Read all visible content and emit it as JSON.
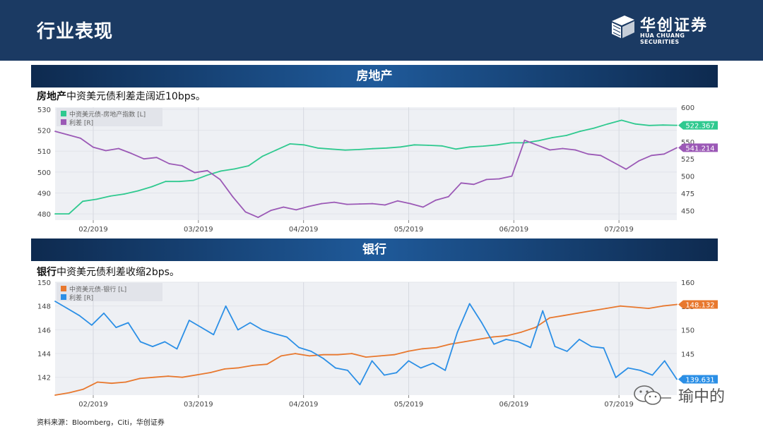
{
  "header": {
    "title": "行业表现"
  },
  "logo": {
    "cn": "华创证券",
    "en": "HUA CHUANG SECURITIES"
  },
  "sections": [
    {
      "label": "房地产",
      "subtitle_bold": "房地产",
      "subtitle_rest": "中资美元债利差走阔近10bps。"
    },
    {
      "label": "银行",
      "subtitle_bold": "银行",
      "subtitle_rest": "中资美元债利差收缩2bps。"
    }
  ],
  "source": "资料来源：Bloomberg，Citi，华创证券",
  "watermark": "瑜中的",
  "colors": {
    "green": "#2fc98f",
    "purple": "#9b59b6",
    "orange": "#e8782e",
    "blue": "#2b8fe6",
    "header": "#1b3a63"
  },
  "chart_data": [
    {
      "type": "line",
      "title": "",
      "x_ticks": [
        "02/2019",
        "03/2019",
        "04/2019",
        "05/2019",
        "06/2019",
        "07/2019"
      ],
      "y_left_ticks": [
        "530",
        "520",
        "510",
        "500",
        "490",
        "480"
      ],
      "y_right_ticks": [
        "600",
        "575",
        "550",
        "525",
        "500",
        "475",
        "450"
      ],
      "ylim_left": [
        477,
        531
      ],
      "ylim_right": [
        436,
        600
      ],
      "legend_placement": "top-left",
      "series": [
        {
          "name": "中资美元债-房地产指数 [L]",
          "axis": "left",
          "color": "#2fc98f",
          "last_label": "522.367",
          "values": [
            480,
            480,
            486,
            487,
            488.5,
            489.5,
            491,
            493,
            495.5,
            495.5,
            496,
            498.5,
            500.5,
            501.5,
            503,
            507.5,
            510.5,
            513.5,
            513,
            511.5,
            511,
            510.5,
            510.8,
            511.2,
            511.5,
            512,
            513,
            512.8,
            512.5,
            511,
            512,
            512.4,
            513,
            514,
            514,
            515,
            516.5,
            517.5,
            519.5,
            521,
            523,
            524.8,
            523,
            522.3,
            522.5,
            522.367
          ]
        },
        {
          "name": "利差 [R]",
          "axis": "right",
          "color": "#9b59b6",
          "last_label": "541.214",
          "values": [
            565,
            560,
            555,
            542,
            537,
            540,
            533,
            525,
            527,
            518,
            515,
            505,
            508,
            495,
            470,
            448,
            440,
            450,
            455,
            451,
            456,
            460,
            462,
            459,
            459.5,
            460,
            458,
            464,
            460,
            455,
            465,
            470,
            490,
            488,
            495,
            496,
            500,
            552,
            545,
            538,
            540,
            538,
            532,
            530,
            520,
            510,
            522,
            530,
            532,
            541.214
          ]
        }
      ]
    },
    {
      "type": "line",
      "title": "",
      "x_ticks": [
        "02/2019",
        "03/2019",
        "04/2019",
        "05/2019",
        "06/2019",
        "07/2019"
      ],
      "y_left_ticks": [
        "150",
        "148",
        "146",
        "144",
        "142"
      ],
      "y_right_ticks": [
        "160",
        "155",
        "150",
        "145",
        "140"
      ],
      "ylim_left": [
        140.5,
        150
      ],
      "ylim_right": [
        136.3,
        160
      ],
      "legend_placement": "top-left",
      "series": [
        {
          "name": "中资美元债-银行 [L]",
          "axis": "left",
          "color": "#e8782e",
          "last_label": "148.132",
          "values": [
            140.5,
            140.7,
            141.0,
            141.6,
            141.5,
            141.6,
            141.9,
            142.0,
            142.1,
            142.0,
            142.2,
            142.4,
            142.7,
            142.8,
            143.0,
            143.1,
            143.8,
            144.0,
            143.8,
            143.9,
            143.9,
            144.0,
            143.7,
            143.8,
            143.9,
            144.2,
            144.4,
            144.5,
            144.8,
            145.0,
            145.2,
            145.4,
            145.5,
            145.8,
            146.2,
            147.0,
            147.2,
            147.4,
            147.6,
            147.8,
            148.0,
            147.9,
            147.8,
            148.0,
            148.132
          ]
        },
        {
          "name": "利差 [R]",
          "axis": "right",
          "color": "#2b8fe6",
          "last_label": "139.631",
          "values": [
            156,
            154.5,
            153,
            151,
            153.5,
            150.5,
            151.5,
            147.5,
            146.5,
            147.5,
            146,
            152,
            150.5,
            149,
            155,
            150,
            151.5,
            150,
            149.2,
            148.5,
            146.3,
            145.5,
            144,
            142,
            141.5,
            138.5,
            143.5,
            140.5,
            141,
            143.5,
            142,
            143,
            141.5,
            149.5,
            155.5,
            151.5,
            147,
            148,
            147.5,
            146.3,
            154,
            146.5,
            145.5,
            148,
            146.5,
            146.2,
            140,
            142,
            141.5,
            140.5,
            143.5,
            139.631
          ]
        }
      ]
    }
  ]
}
